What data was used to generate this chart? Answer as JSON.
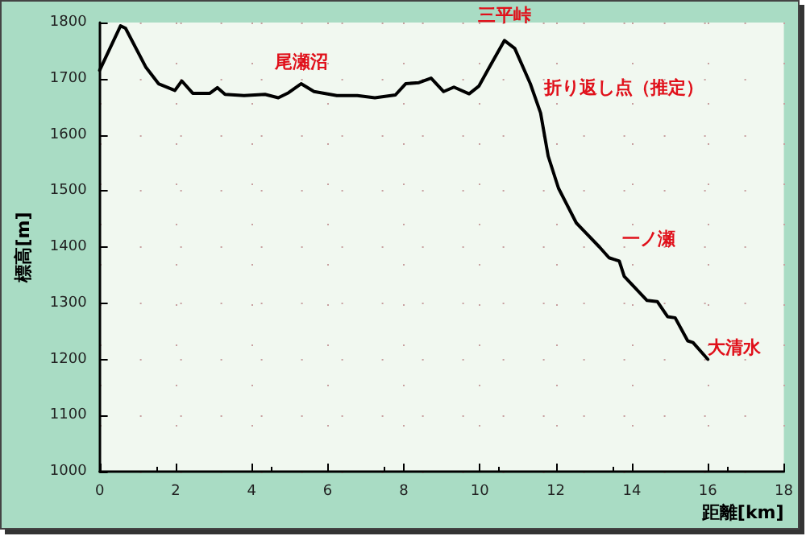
{
  "chart_data": {
    "type": "line",
    "xlabel": "距離[km]",
    "ylabel": "標高[m]",
    "xlim": [
      0,
      18
    ],
    "xticks": [
      0,
      2,
      4,
      6,
      8,
      10,
      12,
      14,
      16,
      18
    ],
    "ylim": [
      1000,
      1800
    ],
    "yticks": [
      1000,
      1100,
      1200,
      1300,
      1400,
      1500,
      1600,
      1700,
      1800
    ],
    "grid": true,
    "marker": "none",
    "line_style": "solid",
    "series": [
      {
        "color": "#000000",
        "x": [
          0,
          0.55,
          0.68,
          1.22,
          1.55,
          1.98,
          2.16,
          2.45,
          2.9,
          3.1,
          3.3,
          3.8,
          4.35,
          4.7,
          4.97,
          5.3,
          5.64,
          6.24,
          6.78,
          7.24,
          7.78,
          8.05,
          8.4,
          8.72,
          9.05,
          9.32,
          9.72,
          9.98,
          10.25,
          10.65,
          10.92,
          11.33,
          11.6,
          11.8,
          12.07,
          12.54,
          12.74,
          13.15,
          13.4,
          13.67,
          13.8,
          14.4,
          14.67,
          14.94,
          15.14,
          15.47,
          15.61,
          16.0
        ],
        "values": [
          1715,
          1794,
          1790,
          1720,
          1691,
          1679,
          1696,
          1674,
          1674,
          1684,
          1672,
          1670,
          1672,
          1666,
          1675,
          1691,
          1677,
          1670,
          1670,
          1666,
          1671,
          1691,
          1693,
          1701,
          1677,
          1685,
          1673,
          1687,
          1720,
          1768,
          1754,
          1691,
          1639,
          1562,
          1505,
          1443,
          1429,
          1400,
          1381,
          1375,
          1348,
          1305,
          1303,
          1276,
          1274,
          1233,
          1230,
          1200
        ]
      }
    ],
    "annotations": [
      {
        "text": "尾瀬沼",
        "x": 5.3,
        "y": 1691
      },
      {
        "text": "三平峠",
        "x": 10.65,
        "y": 1768
      },
      {
        "text": "折り返し点（推定）",
        "x": 11.6,
        "y": 1639
      },
      {
        "text": "一ノ瀬",
        "x": 13.4,
        "y": 1381
      },
      {
        "text": "大清水",
        "x": 16,
        "y": 1200
      }
    ]
  }
}
